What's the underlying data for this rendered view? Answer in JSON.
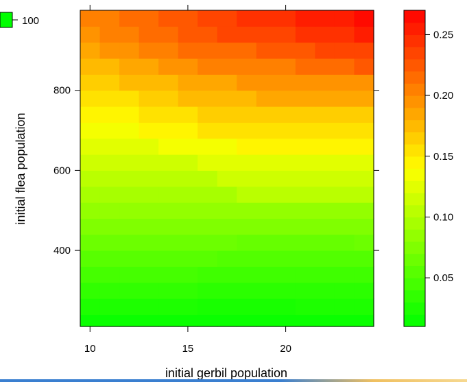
{
  "chart_data": {
    "type": "heatmap",
    "title": "",
    "xlabel": "initial gerbil population",
    "ylabel": "initial flea population",
    "xlim": [
      9.5,
      24.5
    ],
    "ylim": [
      210,
      1000
    ],
    "x_ticks": [
      "10",
      "15",
      "20"
    ],
    "x_tick_values": [
      10,
      15,
      20
    ],
    "y_ticks": [
      "400",
      "600",
      "800"
    ],
    "y_tick_values": [
      400,
      600,
      800
    ],
    "z_levels": [
      0.01,
      0.02,
      0.03,
      0.04,
      0.05,
      0.06,
      0.07,
      0.08,
      0.09,
      0.1,
      0.11,
      0.12,
      0.13,
      0.14,
      0.15,
      0.16,
      0.17,
      0.18,
      0.19,
      0.2,
      0.21,
      0.22,
      0.23,
      0.24,
      0.25,
      0.26,
      0.27
    ],
    "colorbar_ticks": [
      "0.05",
      "0.10",
      "0.15",
      "0.20",
      "0.25"
    ],
    "colorbar_tick_values": [
      0.05,
      0.1,
      0.15,
      0.2,
      0.25
    ],
    "x": [
      10,
      11,
      12,
      13,
      14,
      15,
      16,
      17,
      18,
      19,
      20,
      21,
      22,
      23,
      24
    ],
    "y": [
      220,
      260,
      300,
      340,
      380,
      420,
      460,
      500,
      540,
      580,
      620,
      660,
      700,
      740,
      780,
      820,
      860,
      900,
      940,
      980
    ],
    "z": [
      [
        0.015,
        0.015,
        0.015,
        0.015,
        0.015,
        0.015,
        0.015,
        0.015,
        0.015,
        0.015,
        0.015,
        0.015,
        0.015,
        0.015,
        0.015
      ],
      [
        0.025,
        0.025,
        0.025,
        0.025,
        0.025,
        0.025,
        0.022,
        0.022,
        0.022,
        0.022,
        0.022,
        0.025,
        0.025,
        0.025,
        0.025
      ],
      [
        0.035,
        0.035,
        0.035,
        0.035,
        0.035,
        0.035,
        0.032,
        0.032,
        0.032,
        0.032,
        0.032,
        0.032,
        0.032,
        0.032,
        0.032
      ],
      [
        0.045,
        0.045,
        0.045,
        0.045,
        0.045,
        0.045,
        0.042,
        0.042,
        0.042,
        0.042,
        0.042,
        0.042,
        0.042,
        0.042,
        0.042
      ],
      [
        0.055,
        0.055,
        0.055,
        0.055,
        0.055,
        0.055,
        0.055,
        0.052,
        0.052,
        0.052,
        0.052,
        0.052,
        0.052,
        0.052,
        0.052
      ],
      [
        0.065,
        0.065,
        0.065,
        0.065,
        0.065,
        0.065,
        0.065,
        0.065,
        0.062,
        0.062,
        0.062,
        0.062,
        0.062,
        0.062,
        0.065
      ],
      [
        0.075,
        0.075,
        0.075,
        0.075,
        0.075,
        0.075,
        0.075,
        0.075,
        0.075,
        0.075,
        0.075,
        0.075,
        0.075,
        0.075,
        0.075
      ],
      [
        0.085,
        0.085,
        0.085,
        0.085,
        0.085,
        0.085,
        0.085,
        0.085,
        0.085,
        0.085,
        0.085,
        0.085,
        0.085,
        0.085,
        0.085
      ],
      [
        0.095,
        0.095,
        0.095,
        0.095,
        0.095,
        0.095,
        0.095,
        0.095,
        0.105,
        0.105,
        0.105,
        0.105,
        0.105,
        0.105,
        0.105
      ],
      [
        0.105,
        0.105,
        0.105,
        0.105,
        0.105,
        0.105,
        0.105,
        0.115,
        0.115,
        0.115,
        0.115,
        0.115,
        0.115,
        0.115,
        0.115
      ],
      [
        0.115,
        0.115,
        0.115,
        0.115,
        0.115,
        0.115,
        0.125,
        0.125,
        0.125,
        0.125,
        0.125,
        0.125,
        0.125,
        0.125,
        0.125
      ],
      [
        0.125,
        0.125,
        0.125,
        0.125,
        0.135,
        0.135,
        0.135,
        0.135,
        0.145,
        0.145,
        0.145,
        0.145,
        0.145,
        0.145,
        0.145
      ],
      [
        0.135,
        0.135,
        0.135,
        0.145,
        0.145,
        0.145,
        0.155,
        0.155,
        0.155,
        0.155,
        0.155,
        0.155,
        0.155,
        0.155,
        0.155
      ],
      [
        0.145,
        0.145,
        0.145,
        0.155,
        0.155,
        0.155,
        0.165,
        0.165,
        0.165,
        0.165,
        0.165,
        0.165,
        0.165,
        0.165,
        0.165
      ],
      [
        0.155,
        0.155,
        0.155,
        0.165,
        0.165,
        0.175,
        0.175,
        0.175,
        0.175,
        0.185,
        0.185,
        0.185,
        0.185,
        0.185,
        0.185
      ],
      [
        0.165,
        0.165,
        0.175,
        0.175,
        0.175,
        0.185,
        0.185,
        0.185,
        0.195,
        0.195,
        0.195,
        0.195,
        0.195,
        0.195,
        0.195
      ],
      [
        0.175,
        0.175,
        0.185,
        0.185,
        0.195,
        0.195,
        0.205,
        0.205,
        0.205,
        0.205,
        0.205,
        0.215,
        0.215,
        0.215,
        0.225
      ],
      [
        0.185,
        0.195,
        0.195,
        0.205,
        0.205,
        0.215,
        0.215,
        0.215,
        0.215,
        0.225,
        0.225,
        0.225,
        0.235,
        0.235,
        0.235
      ],
      [
        0.195,
        0.205,
        0.205,
        0.215,
        0.215,
        0.225,
        0.225,
        0.235,
        0.235,
        0.235,
        0.235,
        0.245,
        0.245,
        0.245,
        0.255
      ],
      [
        0.205,
        0.205,
        0.215,
        0.215,
        0.225,
        0.225,
        0.235,
        0.235,
        0.245,
        0.245,
        0.245,
        0.255,
        0.255,
        0.255,
        0.265
      ]
    ],
    "legend": "colorbar-right",
    "colors": {
      "low": "#00ff00",
      "mid": "#ffff00",
      "high": "#ff0000"
    },
    "partial_label": "100"
  }
}
